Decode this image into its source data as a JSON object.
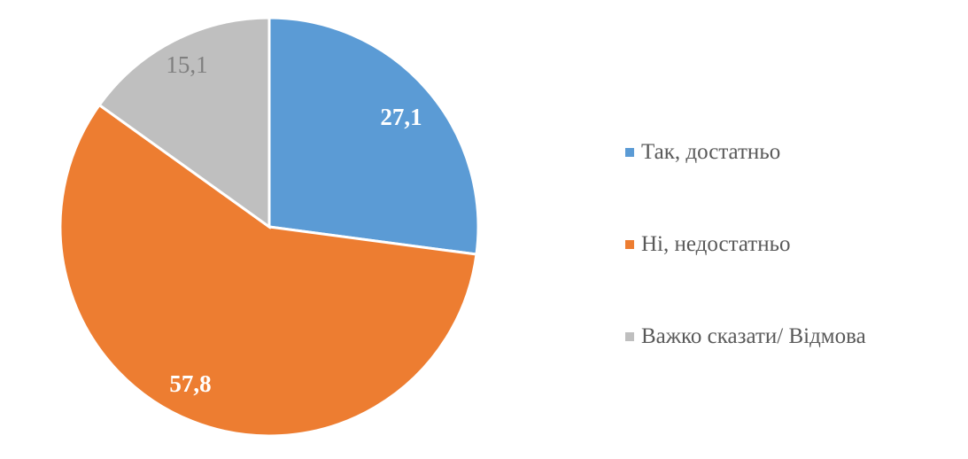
{
  "chart_data": {
    "type": "pie",
    "categories": [
      "Так, достатньо",
      "Ні, недостатньо",
      "Важко сказати/ Відмова"
    ],
    "values": [
      27.1,
      57.8,
      15.1
    ],
    "labels": [
      "27,1",
      "57,8",
      "15,1"
    ],
    "colors": [
      "#5b9bd5",
      "#ed7d31",
      "#bfbfbf"
    ],
    "label_colors": [
      "#ffffff",
      "#ffffff",
      "#7f7f7f"
    ],
    "start_angle": "top, clockwise",
    "legend_position": "right"
  }
}
